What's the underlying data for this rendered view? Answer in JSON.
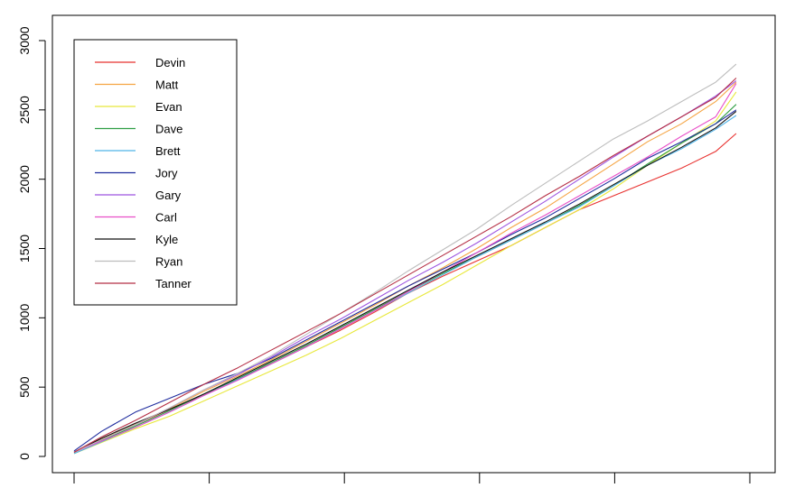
{
  "chart_data": {
    "type": "line",
    "title": "",
    "xlabel": "",
    "ylabel": "",
    "xlim": [
      1,
      100
    ],
    "ylim": [
      0,
      3000
    ],
    "y_ticks": [
      0,
      500,
      1000,
      1500,
      2000,
      2500,
      3000
    ],
    "x_tick_count": 6,
    "grid": false,
    "legend_placement": "top-left",
    "x": [
      1,
      5,
      10,
      15,
      20,
      25,
      30,
      35,
      40,
      45,
      50,
      55,
      60,
      65,
      70,
      75,
      80,
      85,
      90,
      95,
      98
    ],
    "series": [
      {
        "name": "Devin",
        "color": "#E8312F",
        "values": [
          30,
          120,
          230,
          340,
          440,
          560,
          670,
          790,
          910,
          1040,
          1180,
          1300,
          1410,
          1520,
          1650,
          1780,
          1880,
          1980,
          2080,
          2200,
          2330
        ]
      },
      {
        "name": "Matt",
        "color": "#F5A442",
        "values": [
          30,
          125,
          235,
          345,
          470,
          580,
          700,
          830,
          960,
          1090,
          1230,
          1360,
          1500,
          1650,
          1790,
          1950,
          2110,
          2270,
          2400,
          2560,
          2700
        ]
      },
      {
        "name": "Evan",
        "color": "#E8E83A",
        "values": [
          20,
          100,
          200,
          290,
          400,
          510,
          620,
          730,
          850,
          980,
          1110,
          1240,
          1380,
          1520,
          1650,
          1780,
          1930,
          2100,
          2260,
          2420,
          2630
        ]
      },
      {
        "name": "Dave",
        "color": "#2E9E44",
        "values": [
          30,
          115,
          220,
          330,
          450,
          560,
          680,
          800,
          930,
          1060,
          1190,
          1320,
          1440,
          1560,
          1680,
          1810,
          1950,
          2110,
          2260,
          2400,
          2540
        ]
      },
      {
        "name": "Brett",
        "color": "#4FB3E8",
        "values": [
          20,
          105,
          210,
          320,
          440,
          555,
          670,
          790,
          920,
          1050,
          1180,
          1310,
          1440,
          1560,
          1680,
          1800,
          1950,
          2100,
          2220,
          2360,
          2460
        ]
      },
      {
        "name": "Jory",
        "color": "#1F2C9E",
        "values": [
          40,
          180,
          320,
          420,
          520,
          600,
          710,
          840,
          970,
          1100,
          1230,
          1350,
          1470,
          1600,
          1720,
          1860,
          2000,
          2150,
          2270,
          2400,
          2500
        ]
      },
      {
        "name": "Gary",
        "color": "#9D55E0",
        "values": [
          30,
          120,
          230,
          350,
          480,
          590,
          720,
          860,
          990,
          1130,
          1270,
          1400,
          1540,
          1690,
          1840,
          2000,
          2160,
          2310,
          2450,
          2600,
          2710
        ]
      },
      {
        "name": "Carl",
        "color": "#E84FC8",
        "values": [
          30,
          110,
          210,
          320,
          440,
          550,
          670,
          790,
          920,
          1050,
          1190,
          1330,
          1470,
          1610,
          1740,
          1880,
          2020,
          2160,
          2310,
          2450,
          2690
        ]
      },
      {
        "name": "Kyle",
        "color": "#111111",
        "values": [
          30,
          130,
          240,
          340,
          450,
          570,
          690,
          810,
          940,
          1070,
          1200,
          1330,
          1450,
          1570,
          1690,
          1820,
          1960,
          2100,
          2230,
          2370,
          2490
        ]
      },
      {
        "name": "Ryan",
        "color": "#BDBDBD",
        "values": [
          30,
          120,
          230,
          350,
          480,
          600,
          730,
          880,
          1030,
          1180,
          1340,
          1490,
          1640,
          1810,
          1970,
          2130,
          2290,
          2420,
          2560,
          2700,
          2830
        ]
      },
      {
        "name": "Tanner",
        "color": "#B52F45",
        "values": [
          30,
          140,
          260,
          390,
          520,
          640,
          770,
          900,
          1030,
          1170,
          1310,
          1450,
          1590,
          1730,
          1880,
          2020,
          2170,
          2310,
          2450,
          2590,
          2730
        ]
      }
    ]
  }
}
